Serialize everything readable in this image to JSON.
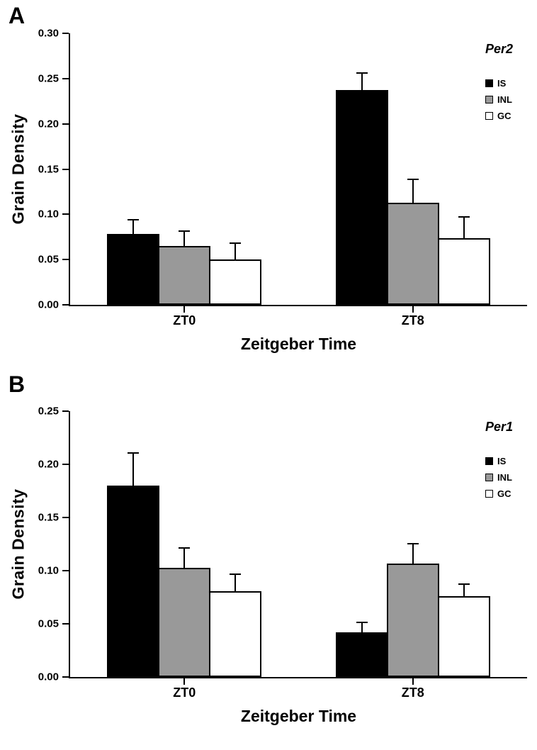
{
  "chart_data": [
    {
      "type": "bar",
      "panel_label": "A",
      "title": "Per2",
      "xlabel": "Zeitgeber Time",
      "ylabel": "Grain Density",
      "categories": [
        "ZT0",
        "ZT8"
      ],
      "series": [
        {
          "name": "IS",
          "color": "#000000",
          "values": [
            0.078,
            0.237
          ],
          "errors": [
            0.015,
            0.018
          ]
        },
        {
          "name": "INL",
          "color": "#999999",
          "values": [
            0.065,
            0.113
          ],
          "errors": [
            0.016,
            0.025
          ]
        },
        {
          "name": "GC",
          "color": "#ffffff",
          "values": [
            0.05,
            0.074
          ],
          "errors": [
            0.017,
            0.022
          ]
        }
      ],
      "ylim": [
        0,
        0.3
      ],
      "ytick_step": 0.05,
      "ytick_decimals": 2,
      "grid": false,
      "legend_position": "top-right"
    },
    {
      "type": "bar",
      "panel_label": "B",
      "title": "Per1",
      "xlabel": "Zeitgeber Time",
      "ylabel": "Grain Density",
      "categories": [
        "ZT0",
        "ZT8"
      ],
      "series": [
        {
          "name": "IS",
          "color": "#000000",
          "values": [
            0.18,
            0.042
          ],
          "errors": [
            0.03,
            0.009
          ]
        },
        {
          "name": "INL",
          "color": "#999999",
          "values": [
            0.103,
            0.107
          ],
          "errors": [
            0.018,
            0.018
          ]
        },
        {
          "name": "GC",
          "color": "#ffffff",
          "values": [
            0.081,
            0.076
          ],
          "errors": [
            0.015,
            0.011
          ]
        }
      ],
      "ylim": [
        0,
        0.25
      ],
      "ytick_step": 0.05,
      "ytick_decimals": 2,
      "grid": false,
      "legend_position": "top-right"
    }
  ]
}
